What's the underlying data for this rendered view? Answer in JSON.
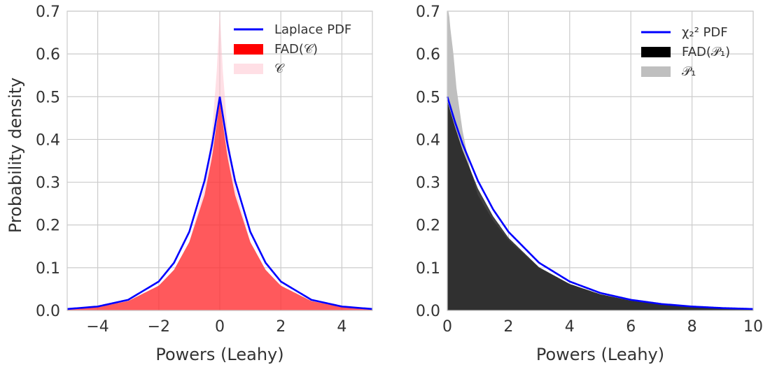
{
  "chart_data": [
    {
      "type": "area",
      "xlabel": "Powers (Leahy)",
      "ylabel": "Probability density",
      "xlim": [
        -5,
        5
      ],
      "ylim": [
        0,
        0.7
      ],
      "xticks": [
        -4,
        -2,
        0,
        2,
        4
      ],
      "xtick_labels": [
        "−4",
        "−2",
        "0",
        "2",
        "4"
      ],
      "yticks": [
        0.0,
        0.1,
        0.2,
        0.3,
        0.4,
        0.5,
        0.6,
        0.7
      ],
      "ytick_labels": [
        "0.0",
        "0.1",
        "0.2",
        "0.3",
        "0.4",
        "0.5",
        "0.6",
        "0.7"
      ],
      "grid": true,
      "legend_position": "top-right",
      "series": [
        {
          "name": "Laplace PDF",
          "kind": "line",
          "color": "#0000ff",
          "x": [
            -5,
            -4,
            -3,
            -2,
            -1.5,
            -1,
            -0.5,
            -0.25,
            0,
            0.25,
            0.5,
            1,
            1.5,
            2,
            3,
            4,
            5
          ],
          "y": [
            0.0034,
            0.0092,
            0.0249,
            0.0677,
            0.1116,
            0.1839,
            0.3033,
            0.3894,
            0.5,
            0.3894,
            0.3033,
            0.1839,
            0.1116,
            0.0677,
            0.0249,
            0.0092,
            0.0034
          ]
        },
        {
          "name": "FAD(𝒞)",
          "kind": "area",
          "color": "#ff0000",
          "x": [
            -5,
            -4,
            -3,
            -2,
            -1.5,
            -1,
            -0.5,
            -0.25,
            0,
            0.25,
            0.5,
            1,
            1.5,
            2,
            3,
            4,
            5
          ],
          "y": [
            0.003,
            0.008,
            0.022,
            0.058,
            0.095,
            0.16,
            0.27,
            0.36,
            0.49,
            0.36,
            0.27,
            0.16,
            0.095,
            0.058,
            0.022,
            0.008,
            0.003
          ]
        },
        {
          "name": "𝒞",
          "kind": "area",
          "color": "#ffc0cb",
          "x": [
            -5,
            -4,
            -3,
            -2,
            -1.5,
            -1,
            -0.5,
            -0.25,
            -0.1,
            0,
            0.1,
            0.25,
            0.5,
            1,
            1.5,
            2,
            3,
            4,
            5
          ],
          "y": [
            0.003,
            0.008,
            0.022,
            0.058,
            0.095,
            0.16,
            0.29,
            0.42,
            0.56,
            0.7,
            0.56,
            0.42,
            0.29,
            0.16,
            0.095,
            0.058,
            0.022,
            0.008,
            0.003
          ]
        }
      ]
    },
    {
      "type": "area",
      "xlabel": "Powers (Leahy)",
      "ylabel": "",
      "xlim": [
        0,
        10
      ],
      "ylim": [
        0,
        0.7
      ],
      "xticks": [
        0,
        2,
        4,
        6,
        8,
        10
      ],
      "xtick_labels": [
        "0",
        "2",
        "4",
        "6",
        "8",
        "10"
      ],
      "yticks": [
        0.0,
        0.1,
        0.2,
        0.3,
        0.4,
        0.5,
        0.6,
        0.7
      ],
      "ytick_labels": [
        "0.0",
        "0.1",
        "0.2",
        "0.3",
        "0.4",
        "0.5",
        "0.6",
        "0.7"
      ],
      "grid": true,
      "legend_position": "top-right",
      "series": [
        {
          "name": "χ₂² PDF",
          "kind": "line",
          "color": "#0000ff",
          "x": [
            0,
            0.25,
            0.5,
            1,
            1.5,
            2,
            3,
            4,
            5,
            6,
            7,
            8,
            9,
            10
          ],
          "y": [
            0.5,
            0.4412,
            0.3894,
            0.3033,
            0.2362,
            0.1839,
            0.1116,
            0.0677,
            0.041,
            0.0249,
            0.0151,
            0.0092,
            0.0056,
            0.0034
          ]
        },
        {
          "name": "FAD(𝒫₁)",
          "kind": "area",
          "color": "#000000",
          "x": [
            0,
            0.25,
            0.5,
            1,
            1.5,
            2,
            3,
            4,
            5,
            6,
            7,
            8,
            9,
            10
          ],
          "y": [
            0.49,
            0.43,
            0.375,
            0.285,
            0.22,
            0.17,
            0.101,
            0.062,
            0.038,
            0.023,
            0.014,
            0.0085,
            0.0052,
            0.0032
          ]
        },
        {
          "name": "𝒫₁",
          "kind": "area",
          "color": "#bfbfbf",
          "x": [
            0,
            0.05,
            0.1,
            0.2,
            0.3,
            0.5,
            0.75,
            1,
            1.5,
            2,
            3,
            4,
            5,
            6,
            7,
            8,
            9,
            10
          ],
          "y": [
            0.7,
            0.7,
            0.66,
            0.6,
            0.52,
            0.42,
            0.33,
            0.27,
            0.21,
            0.165,
            0.1,
            0.062,
            0.038,
            0.023,
            0.014,
            0.0085,
            0.0052,
            0.0032
          ]
        }
      ]
    }
  ]
}
